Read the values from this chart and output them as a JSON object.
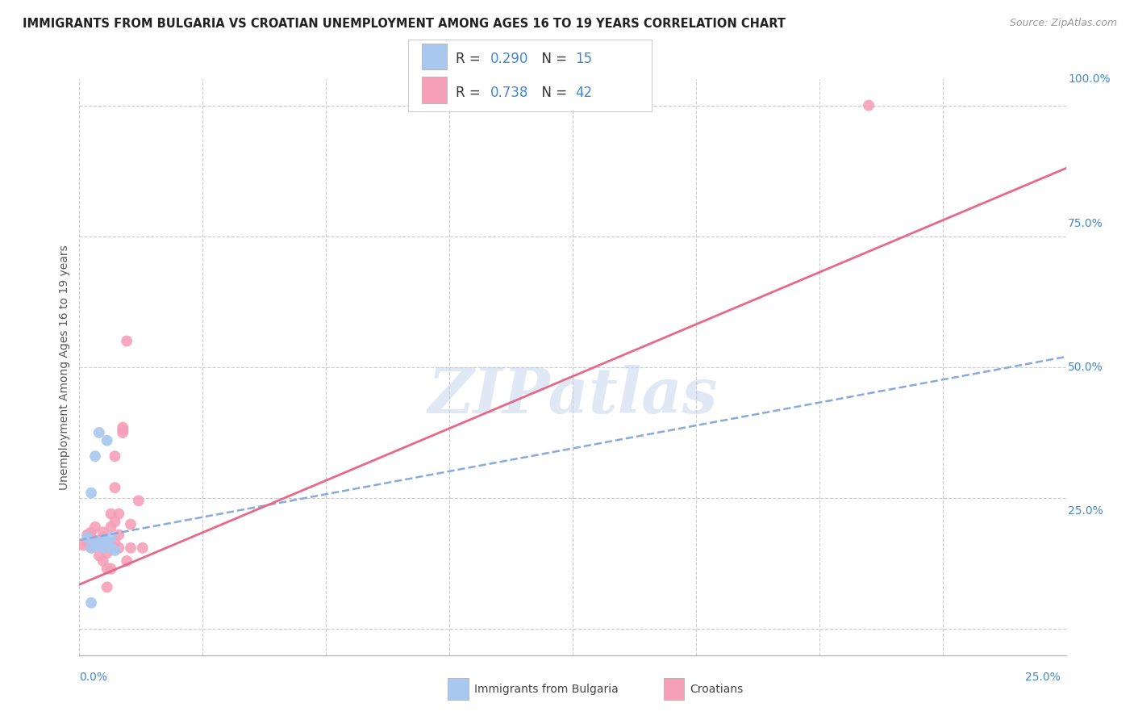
{
  "title": "IMMIGRANTS FROM BULGARIA VS CROATIAN UNEMPLOYMENT AMONG AGES 16 TO 19 YEARS CORRELATION CHART",
  "source": "Source: ZipAtlas.com",
  "ylabel": "Unemployment Among Ages 16 to 19 years",
  "ytick_labels": [
    "",
    "25.0%",
    "50.0%",
    "75.0%",
    "100.0%"
  ],
  "ytick_values": [
    0,
    0.25,
    0.5,
    0.75,
    1.0
  ],
  "xlim": [
    0.0,
    0.25
  ],
  "ylim": [
    -0.05,
    1.05
  ],
  "bg_color": "#ffffff",
  "grid_color": "#cccccc",
  "watermark": "ZIPatlas",
  "blue_color": "#a8c8f0",
  "pink_color": "#f5a0b8",
  "blue_line_color": "#88aadd",
  "pink_line_color": "#e86888",
  "text_color": "#333333",
  "value_color": "#4488cc",
  "blue_scatter": [
    [
      0.002,
      0.175
    ],
    [
      0.003,
      0.155
    ],
    [
      0.004,
      0.165
    ],
    [
      0.005,
      0.16
    ],
    [
      0.006,
      0.17
    ],
    [
      0.003,
      0.26
    ],
    [
      0.004,
      0.33
    ],
    [
      0.005,
      0.375
    ],
    [
      0.006,
      0.155
    ],
    [
      0.007,
      0.165
    ],
    [
      0.008,
      0.155
    ],
    [
      0.009,
      0.15
    ],
    [
      0.003,
      0.05
    ],
    [
      0.007,
      0.36
    ],
    [
      0.008,
      0.175
    ]
  ],
  "pink_scatter": [
    [
      0.001,
      0.16
    ],
    [
      0.002,
      0.18
    ],
    [
      0.002,
      0.165
    ],
    [
      0.003,
      0.155
    ],
    [
      0.003,
      0.185
    ],
    [
      0.003,
      0.175
    ],
    [
      0.004,
      0.16
    ],
    [
      0.004,
      0.195
    ],
    [
      0.004,
      0.165
    ],
    [
      0.005,
      0.165
    ],
    [
      0.005,
      0.17
    ],
    [
      0.005,
      0.14
    ],
    [
      0.006,
      0.155
    ],
    [
      0.006,
      0.185
    ],
    [
      0.006,
      0.175
    ],
    [
      0.006,
      0.155
    ],
    [
      0.006,
      0.13
    ],
    [
      0.007,
      0.16
    ],
    [
      0.007,
      0.145
    ],
    [
      0.007,
      0.115
    ],
    [
      0.007,
      0.08
    ],
    [
      0.008,
      0.195
    ],
    [
      0.008,
      0.22
    ],
    [
      0.008,
      0.16
    ],
    [
      0.008,
      0.115
    ],
    [
      0.009,
      0.27
    ],
    [
      0.009,
      0.205
    ],
    [
      0.009,
      0.33
    ],
    [
      0.009,
      0.165
    ],
    [
      0.01,
      0.155
    ],
    [
      0.01,
      0.18
    ],
    [
      0.01,
      0.22
    ],
    [
      0.011,
      0.38
    ],
    [
      0.011,
      0.385
    ],
    [
      0.011,
      0.375
    ],
    [
      0.012,
      0.13
    ],
    [
      0.013,
      0.155
    ],
    [
      0.013,
      0.2
    ],
    [
      0.015,
      0.245
    ],
    [
      0.016,
      0.155
    ],
    [
      0.012,
      0.55
    ],
    [
      0.2,
      1.0
    ]
  ],
  "blue_trendline_x": [
    0.0,
    0.25
  ],
  "blue_trendline_y": [
    0.17,
    0.52
  ],
  "pink_trendline_x": [
    0.0,
    0.25
  ],
  "pink_trendline_y": [
    0.085,
    0.88
  ]
}
